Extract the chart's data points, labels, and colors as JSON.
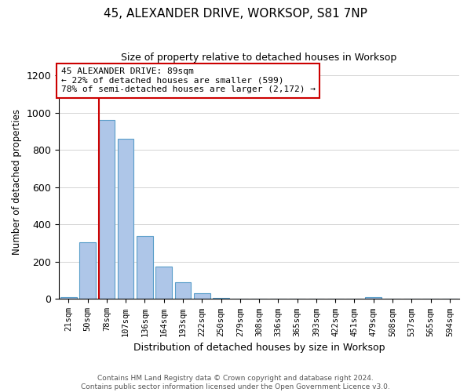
{
  "title": "45, ALEXANDER DRIVE, WORKSOP, S81 7NP",
  "subtitle": "Size of property relative to detached houses in Worksop",
  "xlabel": "Distribution of detached houses by size in Worksop",
  "ylabel": "Number of detached properties",
  "footnote": "Contains HM Land Registry data © Crown copyright and database right 2024.\nContains public sector information licensed under the Open Government Licence v3.0.",
  "bin_labels": [
    "21sqm",
    "50sqm",
    "78sqm",
    "107sqm",
    "136sqm",
    "164sqm",
    "193sqm",
    "222sqm",
    "250sqm",
    "279sqm",
    "308sqm",
    "336sqm",
    "365sqm",
    "393sqm",
    "422sqm",
    "451sqm",
    "479sqm",
    "508sqm",
    "537sqm",
    "565sqm",
    "594sqm"
  ],
  "bin_values": [
    10,
    305,
    960,
    860,
    340,
    175,
    90,
    30,
    5,
    0,
    0,
    0,
    0,
    0,
    0,
    0,
    10,
    0,
    0,
    0,
    0
  ],
  "bar_color": "#aec6e8",
  "bar_edge_color": "#5a9ec9",
  "highlight_line_color": "#cc0000",
  "annotation_text": "45 ALEXANDER DRIVE: 89sqm\n← 22% of detached houses are smaller (599)\n78% of semi-detached houses are larger (2,172) →",
  "annotation_box_color": "#ffffff",
  "annotation_box_edge_color": "#cc0000",
  "ylim": [
    0,
    1260
  ],
  "yticks": [
    0,
    200,
    400,
    600,
    800,
    1000,
    1200
  ],
  "marker_bin_index": 2,
  "bar_width": 0.85
}
